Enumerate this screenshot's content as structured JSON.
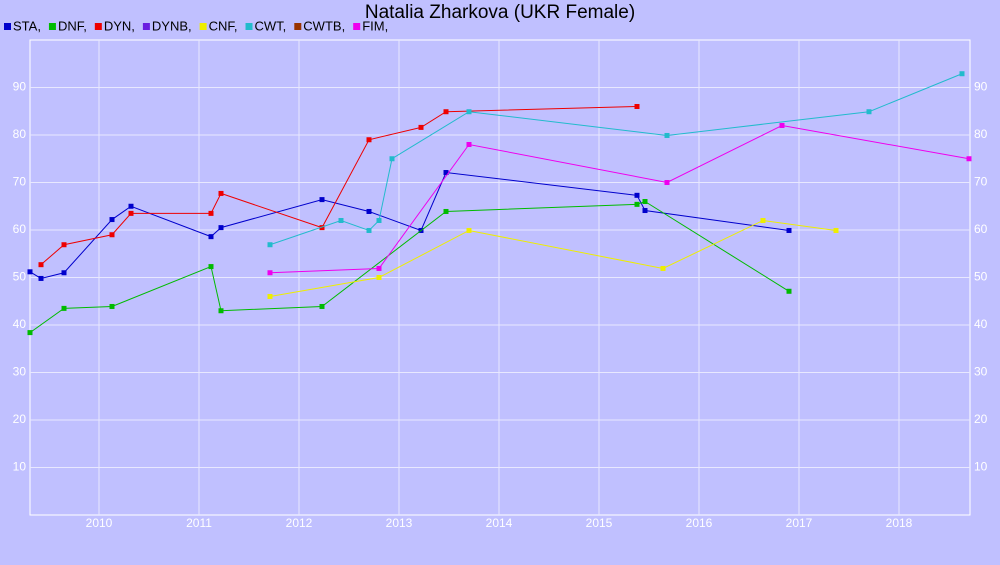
{
  "chart_data": {
    "type": "line",
    "title": "Natalia Zharkova (UKR Female)",
    "xlim": [
      2009.31,
      2018.71
    ],
    "xticks": [
      2010,
      2011,
      2012,
      2013,
      2014,
      2015,
      2016,
      2017,
      2018
    ],
    "ylim": [
      0,
      100
    ],
    "yticks": [
      10,
      20,
      30,
      40,
      50,
      60,
      70,
      80,
      90
    ],
    "grid": true,
    "series": [
      {
        "name": "STA,",
        "color": "#0000cc",
        "x": [
          2009.31,
          2009.42,
          2009.65,
          2010.13,
          2010.32,
          2011.12,
          2011.22,
          2012.23,
          2012.7,
          2013.22,
          2013.47,
          2015.38,
          2015.46,
          2016.9
        ],
        "values": [
          51.2,
          49.8,
          51,
          62.2,
          65,
          58.6,
          60.5,
          66.4,
          63.9,
          59.9,
          72.1,
          67.3,
          64.1,
          59.9
        ]
      },
      {
        "name": "DNF,",
        "color": "#00bb00",
        "x": [
          2009.31,
          2009.65,
          2010.13,
          2011.12,
          2011.22,
          2012.23,
          2013.47,
          2015.38,
          2015.46,
          2016.9
        ],
        "values": [
          38.4,
          43.5,
          43.9,
          52.3,
          43,
          43.9,
          63.9,
          65.4,
          66,
          47.1
        ]
      },
      {
        "name": "DYN,",
        "color": "#ee0000",
        "x": [
          2009.42,
          2009.65,
          2010.13,
          2010.32,
          2011.12,
          2011.22,
          2012.23,
          2012.7,
          2013.22,
          2013.47,
          2015.38
        ],
        "values": [
          52.7,
          56.9,
          59,
          63.5,
          63.5,
          67.7,
          60.5,
          79,
          81.6,
          84.9,
          86
        ]
      },
      {
        "name": "DYNB,",
        "color": "#6a1ee0",
        "x": [],
        "values": []
      },
      {
        "name": "CNF,",
        "color": "#eeee00",
        "x": [
          2011.71,
          2012.8,
          2013.7,
          2015.64,
          2016.64,
          2017.37
        ],
        "values": [
          46,
          50,
          59.9,
          51.9,
          62,
          59.9
        ]
      },
      {
        "name": "CWT,",
        "color": "#22bbcc",
        "x": [
          2011.71,
          2012.42,
          2012.7,
          2012.8,
          2012.93,
          2013.7,
          2015.68,
          2017.7,
          2018.63
        ],
        "values": [
          56.9,
          62,
          59.9,
          62,
          75,
          84.9,
          79.9,
          84.9,
          92.9
        ]
      },
      {
        "name": "CWTB,",
        "color": "#993300",
        "x": [],
        "values": []
      },
      {
        "name": "FIM,",
        "color": "#ee00ee",
        "x": [
          2011.71,
          2012.8,
          2013.7,
          2015.68,
          2016.83,
          2018.7
        ],
        "values": [
          51,
          51.9,
          78,
          70,
          82,
          75
        ]
      }
    ]
  }
}
